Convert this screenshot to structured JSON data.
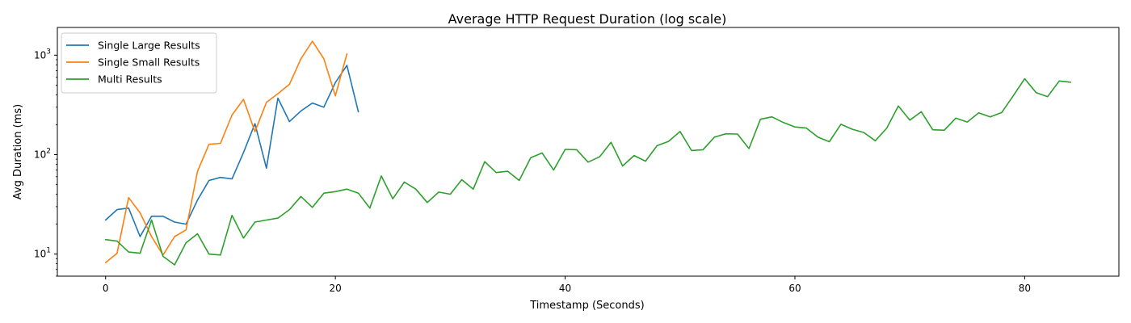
{
  "chart_data": {
    "type": "line",
    "title": "Average HTTP Request Duration (log scale)",
    "xlabel": "Timestamp (Seconds)",
    "ylabel": "Avg Duration (ms)",
    "xlim": [
      -4.2,
      88.2
    ],
    "ylim": [
      6.0,
      1900.0
    ],
    "yscale": "log",
    "grid": false,
    "legend_position": "top-left",
    "xticks": [
      {
        "value": 0,
        "label": "0"
      },
      {
        "value": 20,
        "label": "20"
      },
      {
        "value": 40,
        "label": "40"
      },
      {
        "value": 60,
        "label": "60"
      },
      {
        "value": 80,
        "label": "80"
      }
    ],
    "yticks": [
      {
        "value": 10,
        "base": "10",
        "exp": "1"
      },
      {
        "value": 100,
        "base": "10",
        "exp": "2"
      },
      {
        "value": 1000,
        "base": "10",
        "exp": "3"
      }
    ],
    "series": [
      {
        "name": "Single Large Results",
        "color": "#1f77b4",
        "x": [
          0,
          1,
          2,
          3,
          4,
          5,
          6,
          7,
          8,
          9,
          10,
          11,
          12,
          13,
          14,
          15,
          16,
          17,
          18,
          19,
          20,
          21,
          22
        ],
        "values": [
          22,
          28,
          29,
          15,
          24,
          24,
          21,
          20,
          35,
          55,
          59,
          57,
          105,
          205,
          73,
          370,
          215,
          275,
          330,
          300,
          530,
          790,
          270
        ]
      },
      {
        "name": "Single Small Results",
        "color": "#ff7f0e",
        "x": [
          0,
          1,
          2,
          3,
          4,
          5,
          6,
          7,
          8,
          9,
          10,
          11,
          12,
          13,
          14,
          15,
          16,
          17,
          18,
          19,
          20,
          21
        ],
        "values": [
          8.2,
          10.2,
          37,
          26,
          15,
          9.8,
          15,
          17.5,
          68,
          127,
          130,
          250,
          360,
          170,
          335,
          410,
          510,
          920,
          1380,
          920,
          390,
          1030
        ]
      },
      {
        "name": "Multi Results",
        "color": "#2ca02c",
        "x": [
          0,
          1,
          2,
          3,
          4,
          5,
          6,
          7,
          8,
          9,
          10,
          11,
          12,
          13,
          14,
          15,
          16,
          17,
          18,
          19,
          20,
          21,
          22,
          23,
          24,
          25,
          26,
          27,
          28,
          29,
          30,
          31,
          32,
          33,
          34,
          35,
          36,
          37,
          38,
          39,
          40,
          41,
          42,
          43,
          44,
          45,
          46,
          47,
          48,
          49,
          50,
          51,
          52,
          53,
          54,
          55,
          56,
          57,
          58,
          59,
          60,
          61,
          62,
          63,
          64,
          65,
          66,
          67,
          68,
          69,
          70,
          71,
          72,
          73,
          74,
          75,
          76,
          77,
          78,
          79,
          80,
          81,
          82,
          83,
          84
        ],
        "values": [
          14,
          13.5,
          10.5,
          10.2,
          22,
          9.5,
          7.8,
          13,
          16,
          10,
          9.8,
          24.5,
          14.5,
          21,
          22,
          23,
          28,
          38,
          29.5,
          41,
          42.5,
          45,
          41,
          29,
          61,
          36,
          53,
          45,
          33,
          42,
          40,
          56,
          45,
          85,
          66,
          68,
          55,
          93,
          104,
          70,
          113,
          112,
          84,
          95,
          133,
          77,
          98,
          86,
          123,
          136,
          171,
          110,
          112,
          150,
          162,
          161,
          115,
          227,
          240,
          210,
          190,
          185,
          150,
          135,
          202,
          180,
          167,
          138,
          185,
          308,
          222,
          270,
          178,
          176,
          233,
          213,
          263,
          240,
          265,
          390,
          580,
          420,
          383,
          550,
          535
        ]
      }
    ]
  }
}
